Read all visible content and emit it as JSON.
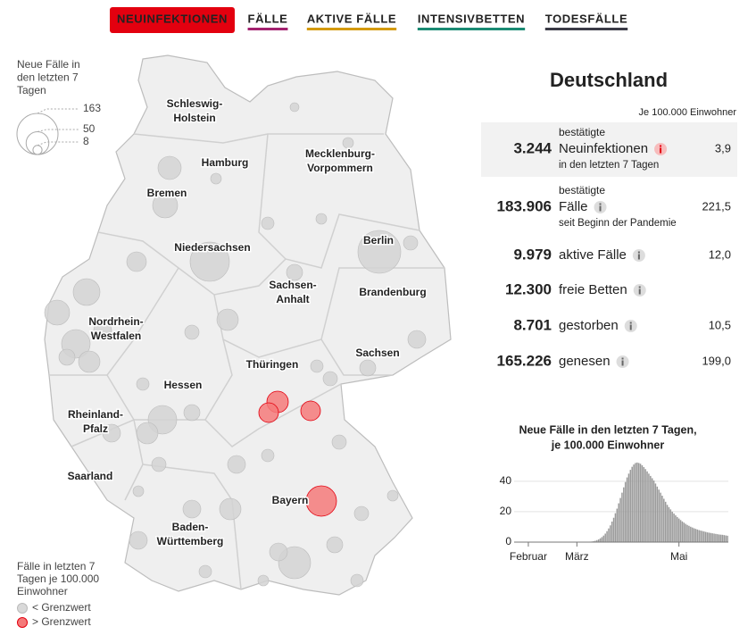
{
  "tabs": [
    {
      "label": "NEUINFEKTIONEN",
      "color": "#e3000f",
      "active": true
    },
    {
      "label": "FÄLLE",
      "color": "#a3226f",
      "active": false
    },
    {
      "label": "AKTIVE FÄLLE",
      "color": "#d49a0a",
      "active": false
    },
    {
      "label": "INTENSIVBETTEN",
      "color": "#1a8a73",
      "active": false
    },
    {
      "label": "TODESFÄLLE",
      "color": "#3b3b47",
      "active": false
    }
  ],
  "map": {
    "legend_title_lines": [
      "Neue Fälle in",
      "den letzten 7",
      "Tagen"
    ],
    "size_legend": [
      163,
      50,
      8
    ],
    "regions": [
      [
        "Schleswig-",
        "Holstein"
      ],
      [
        "Hamburg"
      ],
      [
        "Mecklenburg-",
        "Vorpommern"
      ],
      [
        "Bremen"
      ],
      [
        "Berlin"
      ],
      [
        "Niedersachsen"
      ],
      [
        "Sachsen-",
        "Anhalt"
      ],
      [
        "Brandenburg"
      ],
      [
        "Nordrhein-",
        "Westfalen"
      ],
      [
        "Sachsen"
      ],
      [
        "Thüringen"
      ],
      [
        "Hessen"
      ],
      [
        "Rheinland-",
        "Pfalz"
      ],
      [
        "Saarland"
      ],
      [
        "Bayern"
      ],
      [
        "Baden-",
        "Württemberg"
      ]
    ],
    "color_legend_lines": [
      "Fälle in letzten 7",
      "Tagen je 100.000",
      "Einwohner"
    ],
    "color_legend_items": [
      {
        "label": "< Grenzwert",
        "color": "#d9d9d9"
      },
      {
        "label": "> Grenzwert",
        "color": "#f47a7a"
      }
    ]
  },
  "panel": {
    "title": "Deutschland",
    "note": "Je 100.000 Einwohner",
    "arrow": "↓",
    "rows": [
      {
        "value": "3.244",
        "color": "#e3000f",
        "highlight": true,
        "pre": "bestätigte",
        "label": "Neuinfektionen",
        "post": "in den letzten 7 Tagen",
        "rate": "3,9"
      },
      {
        "value": "183.906",
        "color": "#a3226f",
        "highlight": false,
        "pre": "bestätigte",
        "label": "Fälle",
        "post": "seit Beginn der Pandemie",
        "rate": "221,5"
      },
      {
        "value": "9.979",
        "color": "#d49a0a",
        "highlight": false,
        "label": "aktive Fälle",
        "rate": "12,0"
      },
      {
        "value": "12.300",
        "color": "#1a8a6e",
        "highlight": false,
        "label": "freie Betten"
      },
      {
        "value": "8.701",
        "color": "#2b2b33",
        "highlight": false,
        "label": "gestorben",
        "rate": "10,5"
      },
      {
        "value": "165.226",
        "color": "#555555",
        "highlight": false,
        "label": "genesen",
        "rate": "199,0"
      }
    ]
  },
  "chart_data": {
    "type": "bar",
    "title": "Neue Fälle in den letzten 7 Tagen,",
    "subtitle": "je 100.000 Einwohner",
    "color": "#9a9a9a",
    "grid": true,
    "ylim": [
      0,
      54
    ],
    "yticks": [
      0,
      20,
      40
    ],
    "categories": [
      null,
      null,
      null,
      null,
      null,
      null,
      null,
      null,
      "Februar",
      null,
      null,
      null,
      null,
      null,
      null,
      null,
      null,
      null,
      null,
      null,
      null,
      null,
      null,
      null,
      null,
      null,
      null,
      null,
      null,
      null,
      null,
      null,
      null,
      null,
      null,
      null,
      null,
      "März",
      null,
      null,
      null,
      null,
      null,
      null,
      null,
      null,
      null,
      null,
      null,
      null,
      null,
      null,
      null,
      null,
      null,
      null,
      null,
      null,
      null,
      null,
      null,
      null,
      null,
      null,
      null,
      null,
      null,
      null,
      null,
      null,
      null,
      null,
      null,
      null,
      null,
      null,
      null,
      null,
      null,
      null,
      null,
      null,
      null,
      null,
      null,
      null,
      null,
      null,
      null,
      null,
      null,
      null,
      null,
      null,
      null,
      null,
      null,
      null,
      "Mai",
      null,
      null,
      null,
      null,
      null,
      null,
      null,
      null,
      null,
      null,
      null,
      null,
      null,
      null,
      null,
      null,
      null,
      null,
      null,
      null,
      null,
      null,
      null,
      null,
      null,
      null,
      null,
      null,
      null
    ],
    "values": [
      0,
      0,
      0,
      0,
      0,
      0,
      0,
      0,
      0,
      0,
      0,
      0,
      0,
      0,
      0,
      0,
      0,
      0,
      0,
      0,
      0,
      0,
      0,
      0,
      0,
      0,
      0,
      0,
      0,
      0,
      0,
      0,
      0,
      0,
      0,
      0,
      0,
      0,
      0,
      0,
      0,
      0,
      0.1,
      0.1,
      0.2,
      0.3,
      0.4,
      0.6,
      0.9,
      1.3,
      1.8,
      2.5,
      3.3,
      4.3,
      5.6,
      7.2,
      9,
      11,
      13.5,
      16,
      19,
      22,
      25.5,
      29,
      32.5,
      36,
      39.5,
      42.5,
      45,
      47.5,
      49.5,
      51,
      52,
      52.3,
      52,
      51.5,
      50.5,
      49.3,
      48,
      46.5,
      45,
      43.5,
      42,
      40.5,
      38.5,
      36.5,
      34.5,
      32.5,
      30.5,
      28.5,
      26.5,
      24.5,
      23,
      21.5,
      20,
      18.8,
      17.6,
      16.5,
      15.5,
      14.5,
      13.6,
      12.8,
      12,
      11.3,
      10.7,
      10.1,
      9.6,
      9.1,
      8.7,
      8.3,
      7.9,
      7.6,
      7.3,
      7,
      6.7,
      6.4,
      6.2,
      6,
      5.8,
      5.6,
      5.4,
      5.2,
      5,
      4.9,
      4.8,
      4.6,
      4.4,
      4.2
    ]
  }
}
